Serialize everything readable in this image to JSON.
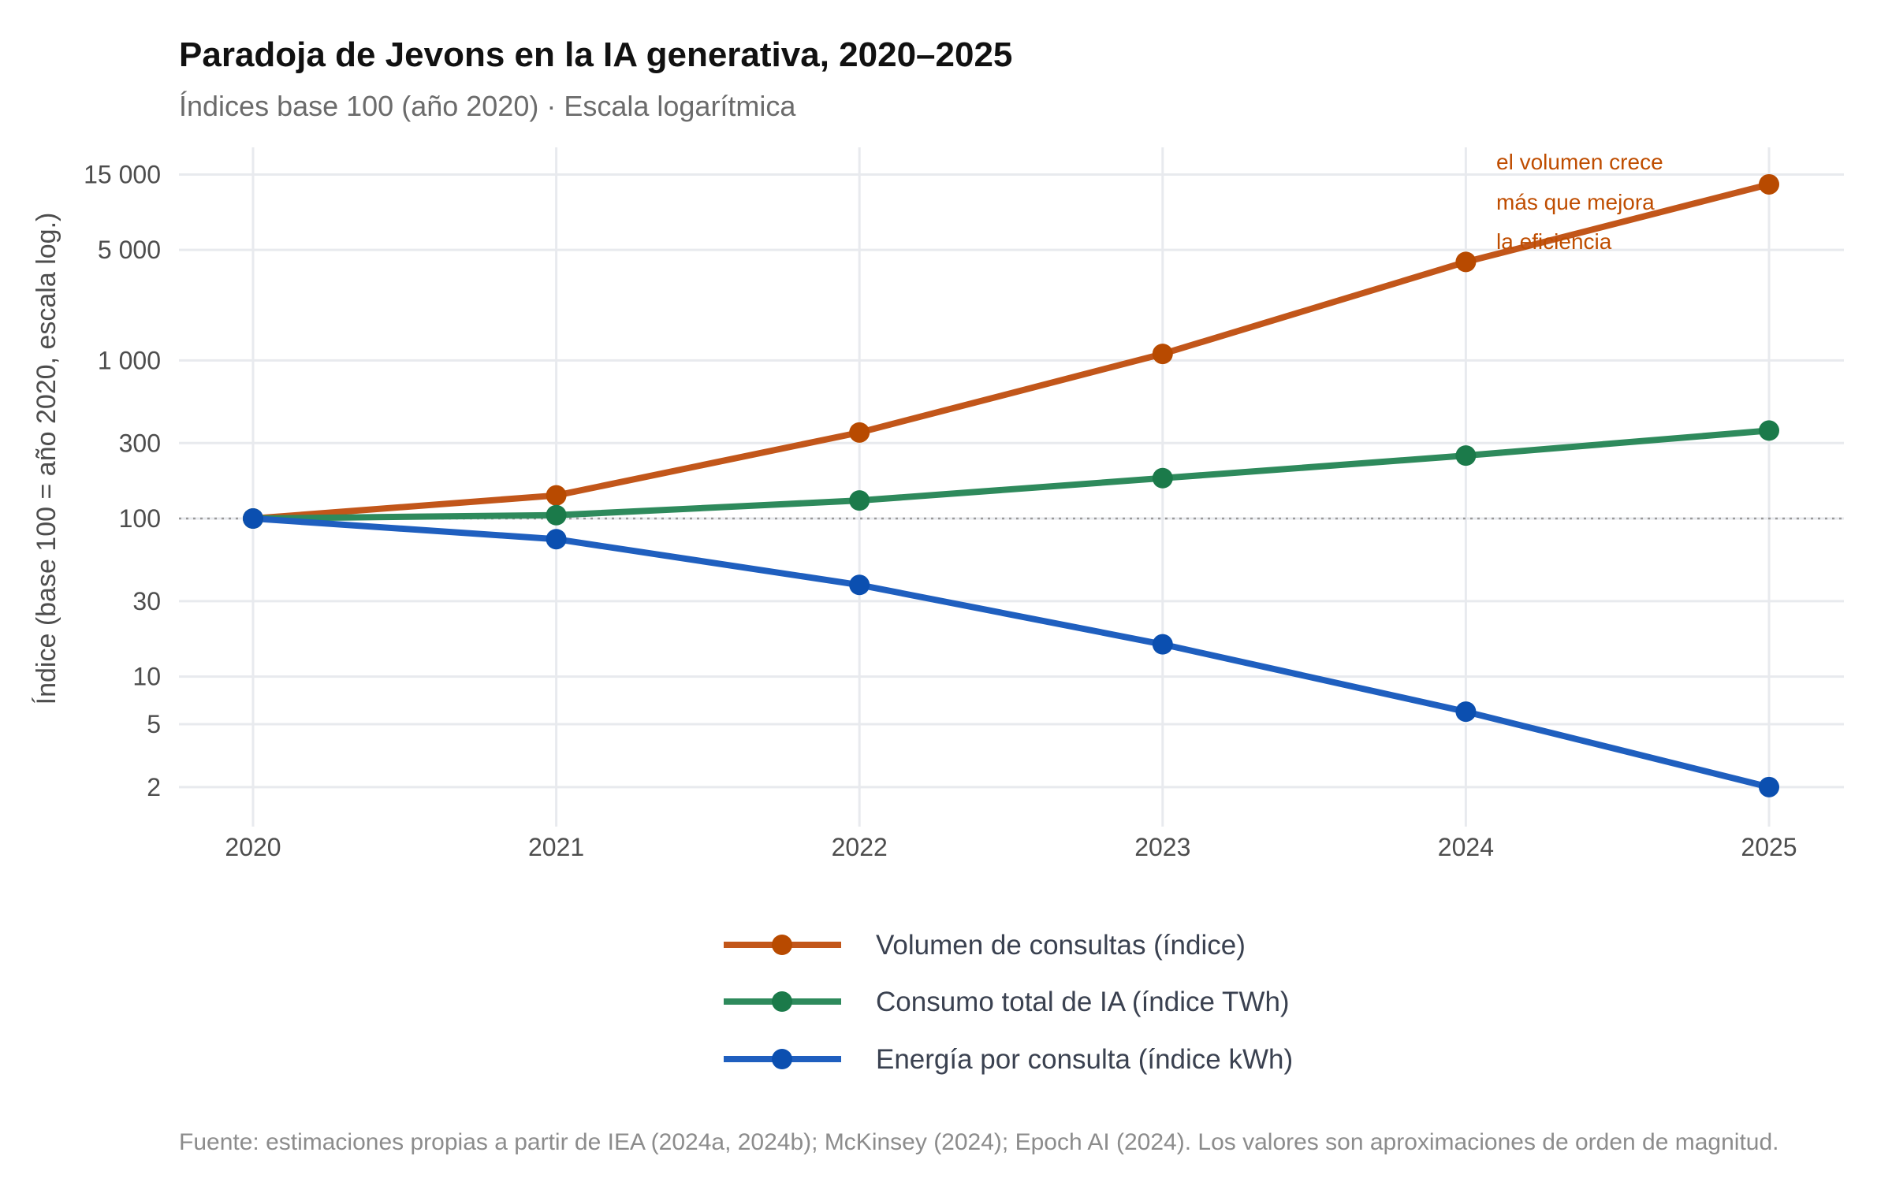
{
  "chart_data": {
    "type": "line",
    "title": "Paradoja de Jevons en la IA generativa, 2020–2025",
    "subtitle": "Índices base 100 (año 2020) · Escala logarítmica",
    "xlabel": "",
    "ylabel": "Índice (base 100 = año 2020, escala log.)",
    "y_scale": "log",
    "ylim": [
      1.5,
      22000
    ],
    "grid": true,
    "legend_position": "bottom",
    "x": [
      2020,
      2021,
      2022,
      2023,
      2024,
      2025
    ],
    "x_tick_labels": [
      "2020",
      "2021",
      "2022",
      "2023",
      "2024",
      "2025"
    ],
    "y_ticks": [
      2,
      5,
      10,
      30,
      100,
      300,
      1000,
      5000,
      15000
    ],
    "y_tick_labels": [
      "2",
      "5",
      "10",
      "30",
      "100",
      "300",
      "1 000",
      "5 000",
      "15 000"
    ],
    "reference_line": {
      "y": 100,
      "style": "dotted"
    },
    "series": [
      {
        "name": "Volumen de consultas (índice)",
        "color": "#c2561a",
        "point_color": "#b84a00",
        "values": [
          100,
          140,
          350,
          1100,
          4200,
          13000
        ]
      },
      {
        "name": "Consumo total de IA (índice TWh)",
        "color": "#2e8a5c",
        "point_color": "#1b7a4a",
        "values": [
          100,
          105,
          130,
          180,
          250,
          360
        ]
      },
      {
        "name": "Energía por consulta (índice kWh)",
        "color": "#1f5fbf",
        "point_color": "#0b4fb0",
        "values": [
          100,
          74,
          38,
          16,
          6,
          2
        ]
      }
    ],
    "annotation": {
      "lines": [
        "el volumen crece",
        "más que mejora",
        "la eficiencia"
      ],
      "color": "#bf4d00"
    },
    "caption": "Fuente: estimaciones propias a partir de IEA (2024a, 2024b); McKinsey (2024); Epoch AI (2024). Los valores son aproximaciones de orden de magnitud."
  }
}
